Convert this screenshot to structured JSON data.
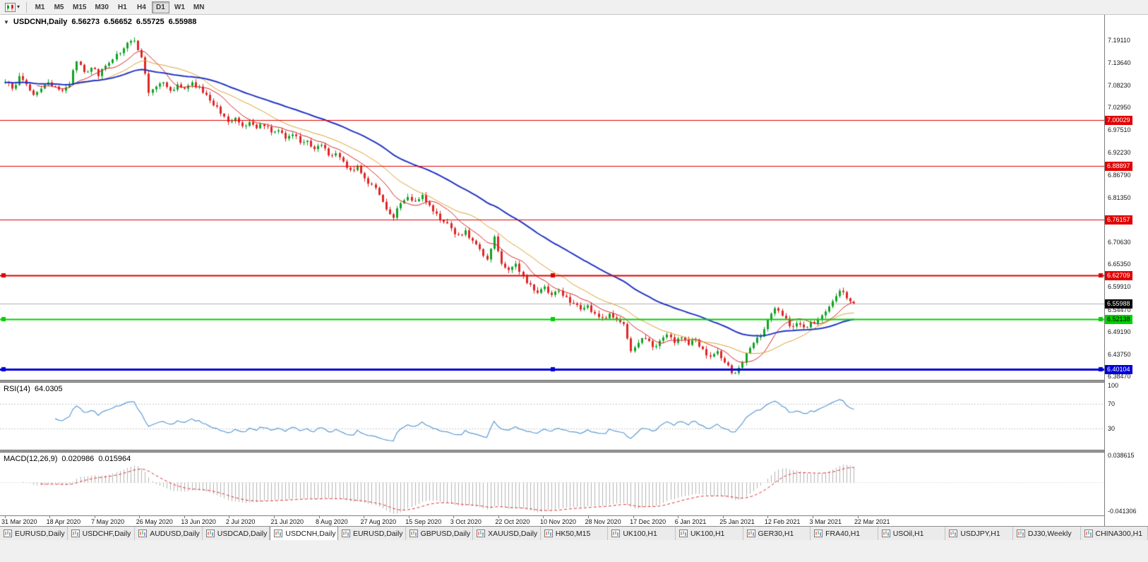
{
  "toolbar": {
    "dropdown_arrow": "▾",
    "timeframes": [
      {
        "label": "M1",
        "active": false
      },
      {
        "label": "M5",
        "active": false
      },
      {
        "label": "M15",
        "active": false
      },
      {
        "label": "M30",
        "active": false
      },
      {
        "label": "H1",
        "active": false
      },
      {
        "label": "H4",
        "active": false
      },
      {
        "label": "D1",
        "active": true
      },
      {
        "label": "W1",
        "active": false
      },
      {
        "label": "MN",
        "active": false
      }
    ]
  },
  "chart_header": {
    "collapse_arrow": "▼",
    "symbol": "USDCNH,Daily",
    "open": "6.56273",
    "high": "6.56652",
    "low": "6.55725",
    "close": "6.55988"
  },
  "price_axis": {
    "ticks": [
      "7.19110",
      "7.13640",
      "7.08230",
      "7.02950",
      "6.97510",
      "6.92230",
      "6.86790",
      "6.81350",
      "6.70630",
      "6.65350",
      "6.59910",
      "6.54470",
      "6.49190",
      "6.43750",
      "6.38470"
    ],
    "level_labels": [
      {
        "value": "7.00029",
        "bg": "#e00000",
        "fg": "#ffffff"
      },
      {
        "value": "6.88897",
        "bg": "#e00000",
        "fg": "#ffffff"
      },
      {
        "value": "6.76157",
        "bg": "#e00000",
        "fg": "#ffffff"
      },
      {
        "value": "6.62709",
        "bg": "#e00000",
        "fg": "#ffffff"
      },
      {
        "value": "6.55988",
        "bg": "#000000",
        "fg": "#ffffff"
      },
      {
        "value": "6.52138",
        "bg": "#00d000",
        "fg": "#000000"
      },
      {
        "value": "6.40104",
        "bg": "#0000d8",
        "fg": "#ffffff"
      }
    ]
  },
  "rsi_panel": {
    "label": "RSI(14)",
    "value": "64.0305",
    "axis_ticks": [
      "100",
      "70",
      "30"
    ]
  },
  "macd_panel": {
    "label": "MACD(12,26,9)",
    "value1": "0.020986",
    "value2": "0.015964",
    "axis_ticks": [
      "0.038615",
      "-0.041306"
    ]
  },
  "time_axis": [
    "31 Mar 2020",
    "18 Apr 2020",
    "7 May 2020",
    "26 May 2020",
    "13 Jun 2020",
    "2 Jul 2020",
    "21 Jul 2020",
    "8 Aug 2020",
    "27 Aug 2020",
    "15 Sep 2020",
    "3 Oct 2020",
    "22 Oct 2020",
    "10 Nov 2020",
    "28 Nov 2020",
    "17 Dec 2020",
    "6 Jan 2021",
    "25 Jan 2021",
    "12 Feb 2021",
    "3 Mar 2021",
    "22 Mar 2021"
  ],
  "tabs": [
    {
      "label": "EURUSD,Daily",
      "active": false
    },
    {
      "label": "USDCHF,Daily",
      "active": false
    },
    {
      "label": "AUDUSD,Daily",
      "active": false
    },
    {
      "label": "USDCAD,Daily",
      "active": false
    },
    {
      "label": "USDCNH,Daily",
      "active": true
    },
    {
      "label": "EURUSD,Daily",
      "active": false
    },
    {
      "label": "GBPUSD,Daily",
      "active": false
    },
    {
      "label": "XAUUSD,Daily",
      "active": false
    },
    {
      "label": "HK50,M15",
      "active": false
    },
    {
      "label": "UK100,H1",
      "active": false
    },
    {
      "label": "UK100,H1",
      "active": false
    },
    {
      "label": "GER30,H1",
      "active": false
    },
    {
      "label": "FRA40,H1",
      "active": false
    },
    {
      "label": "USOil,H1",
      "active": false
    },
    {
      "label": "USDJPY,H1",
      "active": false
    },
    {
      "label": "DJ30,Weekly",
      "active": false
    },
    {
      "label": "CHINA300,H1",
      "active": false
    }
  ],
  "chart_data": {
    "type": "candlestick",
    "symbol": "USDCNH",
    "period": "Daily",
    "ohlc_current": {
      "open": 6.56273,
      "high": 6.56652,
      "low": 6.55725,
      "close": 6.55988
    },
    "price_axis_range": {
      "top": 7.2521,
      "bottom": 6.3762
    },
    "up_color": "#10a325",
    "down_color": "#e02525",
    "closes": [
      7.09,
      7.075,
      7.105,
      7.085,
      7.06,
      7.075,
      7.09,
      7.08,
      7.07,
      7.085,
      7.14,
      7.115,
      7.125,
      7.105,
      7.13,
      7.145,
      7.16,
      7.185,
      7.19,
      7.15,
      7.065,
      7.08,
      7.09,
      7.07,
      7.085,
      7.075,
      7.09,
      7.08,
      7.06,
      7.035,
      7.015,
      6.995,
      7.005,
      6.985,
      6.995,
      6.98,
      6.985,
      6.97,
      6.975,
      6.955,
      6.965,
      6.945,
      6.95,
      6.93,
      6.94,
      6.915,
      6.92,
      6.9,
      6.88,
      6.89,
      6.86,
      6.845,
      6.82,
      6.785,
      6.765,
      6.8,
      6.815,
      6.805,
      6.82,
      6.795,
      6.775,
      6.755,
      6.74,
      6.725,
      6.735,
      6.71,
      6.69,
      6.665,
      6.72,
      6.655,
      6.64,
      6.655,
      6.625,
      6.605,
      6.585,
      6.6,
      6.58,
      6.59,
      6.575,
      6.56,
      6.545,
      6.555,
      6.535,
      6.525,
      6.535,
      6.52,
      6.51,
      6.445,
      6.465,
      6.475,
      6.455,
      6.47,
      6.485,
      6.465,
      6.478,
      6.46,
      6.472,
      6.45,
      6.432,
      6.445,
      6.418,
      6.392,
      6.405,
      6.44,
      6.465,
      6.48,
      6.52,
      6.548,
      6.53,
      6.505,
      6.512,
      6.502,
      6.515,
      6.522,
      6.54,
      6.565,
      6.59,
      6.572,
      6.56
    ],
    "horizontal_lines": [
      {
        "price": 7.00029,
        "color": "#e00000",
        "width": 1,
        "selected": false
      },
      {
        "price": 6.88897,
        "color": "#e00000",
        "width": 1,
        "selected": false
      },
      {
        "price": 6.76157,
        "color": "#e00000",
        "width": 1,
        "selected": false
      },
      {
        "price": 6.62709,
        "color": "#e00000",
        "width": 2,
        "selected": true
      },
      {
        "price": 6.52138,
        "color": "#00d000",
        "width": 2,
        "selected": true
      },
      {
        "price": 6.40104,
        "color": "#0000d8",
        "width": 3,
        "selected": true
      }
    ],
    "current_price": 6.55988,
    "moving_averages": [
      {
        "name": "fast",
        "period": 10,
        "color": "#d92525",
        "lineWidth": 1
      },
      {
        "name": "medium",
        "period": 21,
        "color": "#e0a030",
        "lineWidth": 1
      },
      {
        "name": "slow",
        "period": 48,
        "color": "#2336c4",
        "lineWidth": 2
      }
    ],
    "rsi": {
      "period": 14,
      "current": 64.0305,
      "levels": [
        70,
        30
      ],
      "scale": [
        0,
        100
      ],
      "color": "#5b9bd5"
    },
    "macd": {
      "fast": 12,
      "slow": 26,
      "signal": 9,
      "current_macd": 0.020986,
      "current_signal": 0.015964,
      "scale": [
        -0.041306,
        0.038615
      ],
      "histogram_color": "#b4b4b4",
      "signal_color": "#e03131"
    }
  }
}
